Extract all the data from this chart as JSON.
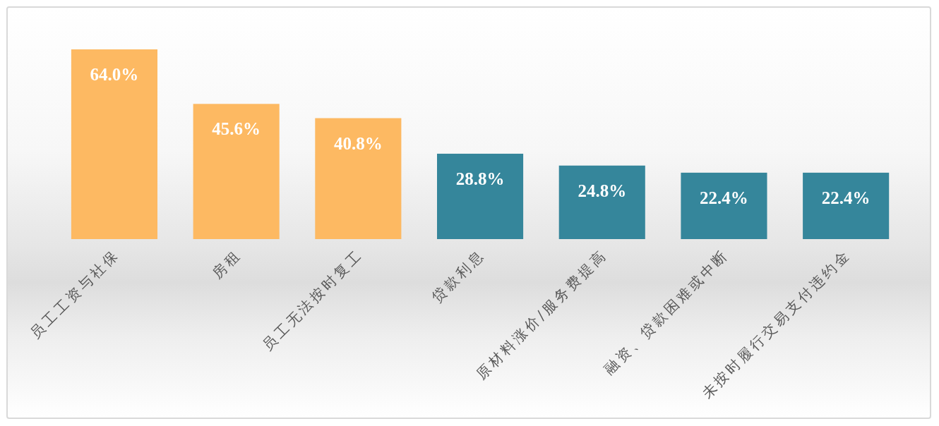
{
  "chart_data": {
    "type": "bar",
    "categories": [
      "员工工资与社保",
      "房租",
      "员工无法按时复工",
      "贷款利息",
      "原材料涨价/服务费提高",
      "融资、贷款困难或中断",
      "未按时履行交易支付违约金"
    ],
    "values": [
      64.0,
      45.6,
      40.8,
      28.8,
      24.8,
      22.4,
      22.4
    ],
    "colors": [
      "#fdb962",
      "#fdb962",
      "#fdb962",
      "#35869b",
      "#35869b",
      "#35869b",
      "#35869b"
    ],
    "value_labels": [
      "64.0%",
      "45.6%",
      "40.8%",
      "28.8%",
      "24.8%",
      "22.4%",
      "22.4%"
    ]
  }
}
